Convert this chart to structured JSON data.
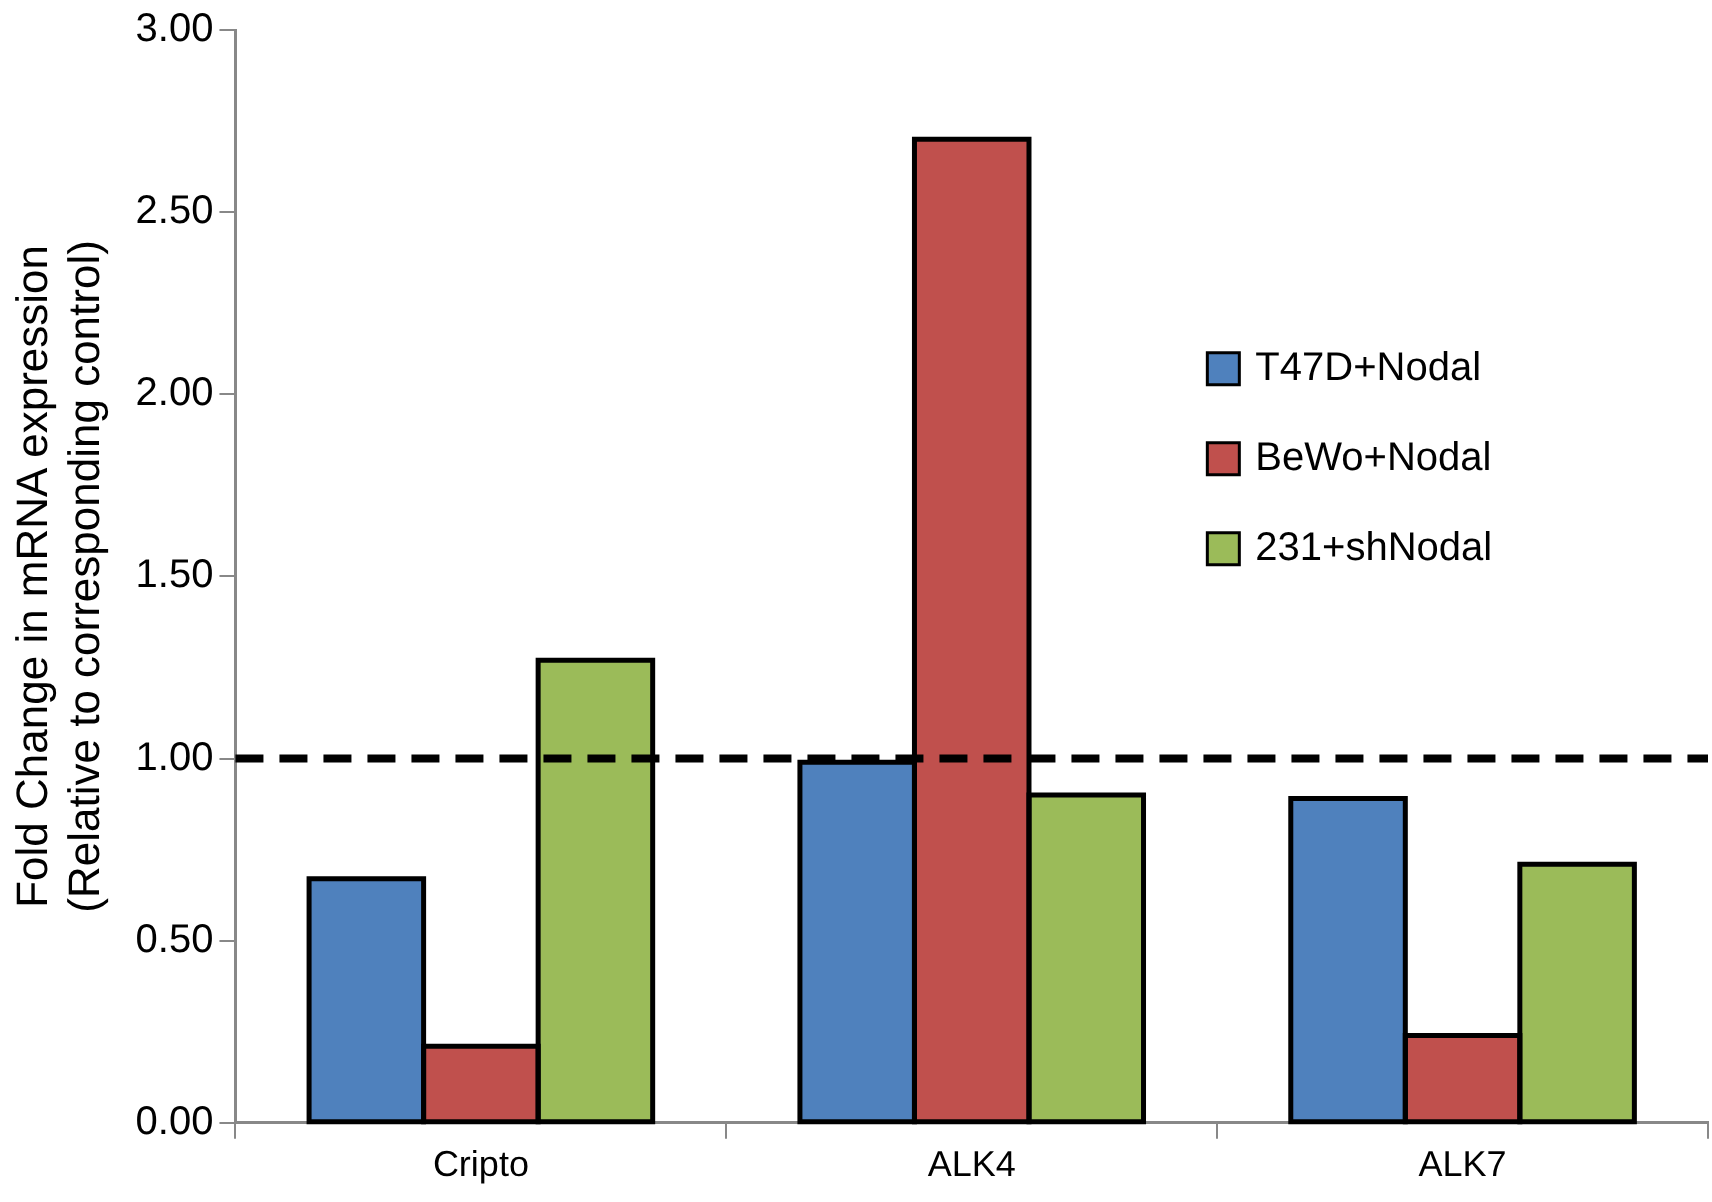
{
  "chart_data": {
    "type": "bar",
    "ylabel": "Fold Change in mRNA expression\n(Relative to corresponding control)",
    "categories": [
      "Cripto",
      "ALK4",
      "ALK7"
    ],
    "series": [
      {
        "name": "T47D+Nodal",
        "color": "#4f81bd",
        "values": [
          0.67,
          0.99,
          0.89
        ]
      },
      {
        "name": "BeWo+Nodal",
        "color": "#c0504d",
        "values": [
          0.21,
          2.7,
          0.24
        ]
      },
      {
        "name": "231+shNodal",
        "color": "#9bbb59",
        "values": [
          1.27,
          0.9,
          0.71
        ]
      }
    ],
    "ylim": [
      0,
      3
    ],
    "yticks": [
      {
        "value": 0,
        "label": "0.00"
      },
      {
        "value": 0.5,
        "label": "0.50"
      },
      {
        "value": 1,
        "label": "1.00"
      },
      {
        "value": 1.5,
        "label": "1.50"
      },
      {
        "value": 2,
        "label": "2.00"
      },
      {
        "value": 2.5,
        "label": "2.50"
      },
      {
        "value": 3,
        "label": "3.00"
      }
    ],
    "ref_lines": [
      {
        "axis": "y",
        "value": 1,
        "color": "#000000",
        "line_style": "dashed"
      }
    ],
    "legend": "right",
    "grid": false
  }
}
